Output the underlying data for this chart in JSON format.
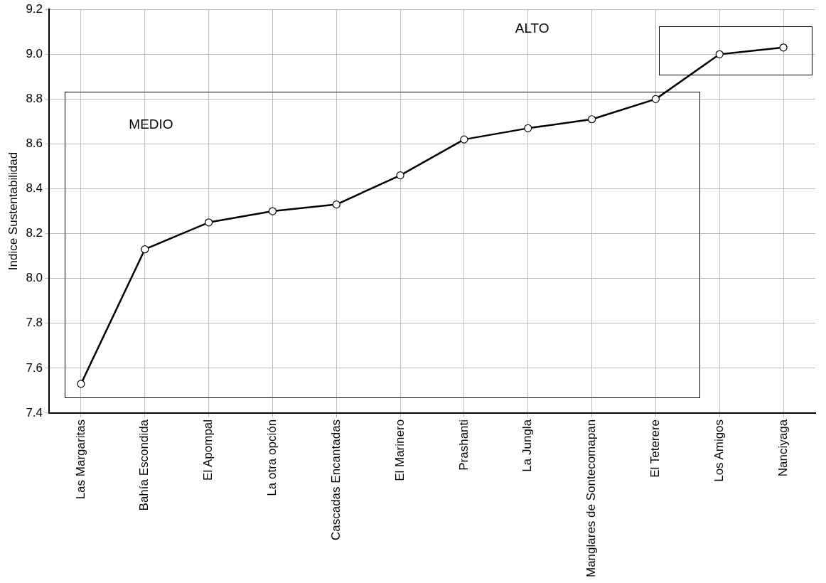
{
  "chart_data": {
    "type": "line",
    "ylabel": "Indice Sustentabilidad",
    "categories": [
      "Las Margaritas",
      "Bahía Escondida",
      "El Apompal",
      "La otra opción",
      "Cascadas Encantadas",
      "El Marinero",
      "Prashanti",
      "La Jungla",
      "Manglares de Sontecomapan",
      "El Teterere",
      "Los Amigos",
      "Nanciyaga"
    ],
    "series": [
      {
        "color": "#000000",
        "values": [
          7.53,
          8.13,
          8.25,
          8.3,
          8.33,
          8.46,
          8.62,
          8.67,
          8.71,
          8.8,
          9.0,
          9.03
        ]
      }
    ],
    "ylim": [
      7.4,
      9.2
    ],
    "yticks": [
      7.4,
      7.6,
      7.8,
      {
        "value": 8,
        "label": "8.0"
      },
      8.2,
      8.4,
      8.6,
      8.8,
      {
        "value": 9,
        "label": "9.0"
      },
      9.2
    ],
    "grid": true,
    "legend": false,
    "marker": "circle",
    "line_style": "solid",
    "annotations": [
      "MEDIO",
      "ALTO"
    ]
  }
}
